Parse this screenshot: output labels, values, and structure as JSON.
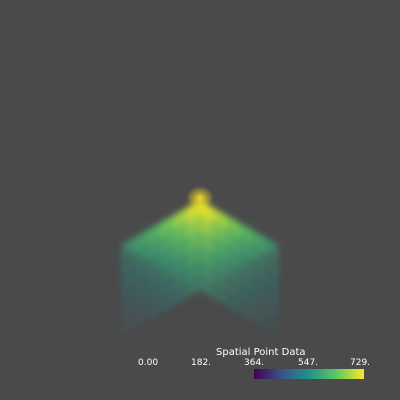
{
  "colorbar": {
    "title": "Spatial Point Data",
    "ticks": [
      "0.00",
      "182.",
      "364.",
      "547.",
      "729."
    ],
    "range": [
      0,
      729
    ],
    "colormap": "viridis",
    "colors": [
      "#440154",
      "#3b528b",
      "#21918c",
      "#5ec962",
      "#fde725"
    ]
  },
  "volume": {
    "colormap": "viridis",
    "max_value": 729
  }
}
